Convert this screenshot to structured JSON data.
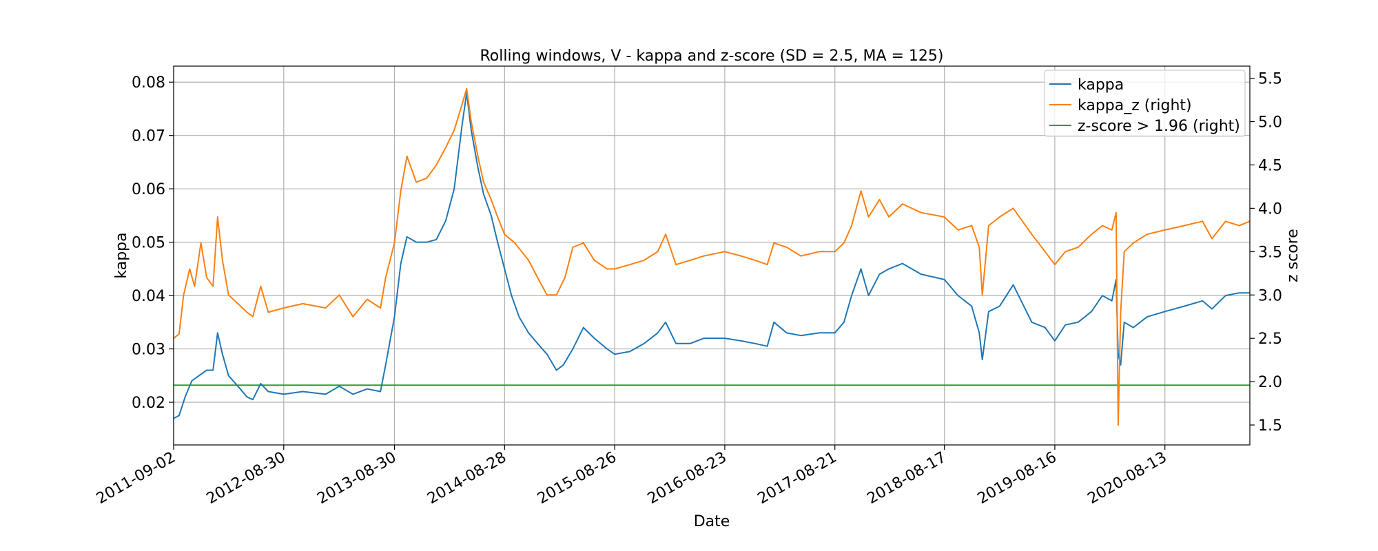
{
  "chart_data": {
    "type": "line",
    "title": "Rolling windows, V - kappa and z-score (SD = 2.5, MA = 125)",
    "xlabel": "Date",
    "ylabel_left": "kappa",
    "ylabel_right": "z score",
    "grid": true,
    "legend_position": "top-right",
    "x_range": [
      "2011-09-02",
      "2021-05-20"
    ],
    "x_ticks": [
      "2011-09-02",
      "2012-08-30",
      "2013-08-30",
      "2014-08-28",
      "2015-08-26",
      "2016-08-23",
      "2017-08-21",
      "2018-08-17",
      "2019-08-16",
      "2020-08-13"
    ],
    "y_left": {
      "range": [
        0.012,
        0.083
      ],
      "ticks": [
        "0.02",
        "0.03",
        "0.04",
        "0.05",
        "0.06",
        "0.07",
        "0.08"
      ]
    },
    "y_right": {
      "range": [
        1.27,
        5.64
      ],
      "ticks": [
        "1.5",
        "2.0",
        "2.5",
        "3.0",
        "3.5",
        "4.0",
        "4.5",
        "5.0",
        "5.5"
      ]
    },
    "series": [
      {
        "name": "kappa",
        "axis": "left",
        "color": "#1f77b4",
        "points": [
          [
            "2011-09-02",
            0.017
          ],
          [
            "2011-09-20",
            0.0175
          ],
          [
            "2011-10-10",
            0.021
          ],
          [
            "2011-11-01",
            0.024
          ],
          [
            "2011-11-25",
            0.025
          ],
          [
            "2011-12-20",
            0.026
          ],
          [
            "2012-01-10",
            0.026
          ],
          [
            "2012-01-25",
            0.033
          ],
          [
            "2012-02-10",
            0.029
          ],
          [
            "2012-03-01",
            0.025
          ],
          [
            "2012-04-01",
            0.023
          ],
          [
            "2012-05-01",
            0.021
          ],
          [
            "2012-05-20",
            0.0205
          ],
          [
            "2012-06-15",
            0.0235
          ],
          [
            "2012-07-10",
            0.022
          ],
          [
            "2012-08-30",
            0.0215
          ],
          [
            "2012-11-01",
            0.022
          ],
          [
            "2013-01-15",
            0.0215
          ],
          [
            "2013-03-01",
            0.023
          ],
          [
            "2013-04-15",
            0.0215
          ],
          [
            "2013-06-01",
            0.0225
          ],
          [
            "2013-07-15",
            0.022
          ],
          [
            "2013-08-01",
            0.027
          ],
          [
            "2013-08-30",
            0.036
          ],
          [
            "2013-09-20",
            0.046
          ],
          [
            "2013-10-10",
            0.051
          ],
          [
            "2013-11-10",
            0.05
          ],
          [
            "2013-12-15",
            0.05
          ],
          [
            "2014-01-15",
            0.0505
          ],
          [
            "2014-02-15",
            0.054
          ],
          [
            "2014-03-15",
            0.06
          ],
          [
            "2014-04-10",
            0.072
          ],
          [
            "2014-04-25",
            0.078
          ],
          [
            "2014-05-10",
            0.071
          ],
          [
            "2014-06-01",
            0.064
          ],
          [
            "2014-06-20",
            0.059
          ],
          [
            "2014-07-15",
            0.055
          ],
          [
            "2014-08-05",
            0.05
          ],
          [
            "2014-08-28",
            0.045
          ],
          [
            "2014-09-20",
            0.04
          ],
          [
            "2014-10-15",
            0.036
          ],
          [
            "2014-11-15",
            0.033
          ],
          [
            "2014-12-15",
            0.031
          ],
          [
            "2015-01-15",
            0.029
          ],
          [
            "2015-02-15",
            0.026
          ],
          [
            "2015-03-10",
            0.027
          ],
          [
            "2015-04-10",
            0.03
          ],
          [
            "2015-05-15",
            0.034
          ],
          [
            "2015-06-20",
            0.032
          ],
          [
            "2015-08-01",
            0.03
          ],
          [
            "2015-08-26",
            0.029
          ],
          [
            "2015-10-15",
            0.0295
          ],
          [
            "2015-12-01",
            0.031
          ],
          [
            "2016-01-15",
            0.033
          ],
          [
            "2016-02-10",
            0.035
          ],
          [
            "2016-03-15",
            0.031
          ],
          [
            "2016-05-01",
            0.031
          ],
          [
            "2016-06-15",
            0.032
          ],
          [
            "2016-08-23",
            0.032
          ],
          [
            "2016-10-15",
            0.0315
          ],
          [
            "2016-12-01",
            0.031
          ],
          [
            "2017-01-10",
            0.0305
          ],
          [
            "2017-02-01",
            0.035
          ],
          [
            "2017-03-15",
            0.033
          ],
          [
            "2017-05-01",
            0.0325
          ],
          [
            "2017-07-01",
            0.033
          ],
          [
            "2017-08-21",
            0.033
          ],
          [
            "2017-09-20",
            0.035
          ],
          [
            "2017-10-15",
            0.04
          ],
          [
            "2017-11-15",
            0.045
          ],
          [
            "2017-12-10",
            0.04
          ],
          [
            "2018-01-15",
            0.044
          ],
          [
            "2018-02-15",
            0.045
          ],
          [
            "2018-04-01",
            0.046
          ],
          [
            "2018-06-01",
            0.044
          ],
          [
            "2018-08-17",
            0.043
          ],
          [
            "2018-10-01",
            0.04
          ],
          [
            "2018-11-15",
            0.038
          ],
          [
            "2018-12-10",
            0.033
          ],
          [
            "2018-12-20",
            0.028
          ],
          [
            "2019-01-10",
            0.037
          ],
          [
            "2019-02-15",
            0.038
          ],
          [
            "2019-04-01",
            0.042
          ],
          [
            "2019-06-01",
            0.035
          ],
          [
            "2019-07-15",
            0.034
          ],
          [
            "2019-08-16",
            0.0315
          ],
          [
            "2019-09-20",
            0.0345
          ],
          [
            "2019-11-01",
            0.035
          ],
          [
            "2019-12-15",
            0.037
          ],
          [
            "2020-01-20",
            0.04
          ],
          [
            "2020-02-20",
            0.039
          ],
          [
            "2020-03-05",
            0.043
          ],
          [
            "2020-03-12",
            0.029
          ],
          [
            "2020-03-20",
            0.027
          ],
          [
            "2020-04-01",
            0.035
          ],
          [
            "2020-05-01",
            0.034
          ],
          [
            "2020-06-15",
            0.036
          ],
          [
            "2020-08-13",
            0.037
          ],
          [
            "2020-10-15",
            0.038
          ],
          [
            "2020-12-15",
            0.039
          ],
          [
            "2021-01-15",
            0.0375
          ],
          [
            "2021-03-01",
            0.04
          ],
          [
            "2021-04-15",
            0.0405
          ],
          [
            "2021-05-20",
            0.0405
          ]
        ]
      },
      {
        "name": "kappa_z (right)",
        "axis": "right",
        "color": "#ff7f0e",
        "points": [
          [
            "2011-09-02",
            2.5
          ],
          [
            "2011-09-20",
            2.55
          ],
          [
            "2011-10-05",
            3.0
          ],
          [
            "2011-10-25",
            3.3
          ],
          [
            "2011-11-10",
            3.1
          ],
          [
            "2011-12-01",
            3.6
          ],
          [
            "2011-12-20",
            3.2
          ],
          [
            "2012-01-10",
            3.1
          ],
          [
            "2012-01-25",
            3.9
          ],
          [
            "2012-02-10",
            3.4
          ],
          [
            "2012-03-01",
            3.0
          ],
          [
            "2012-04-01",
            2.9
          ],
          [
            "2012-05-01",
            2.8
          ],
          [
            "2012-05-20",
            2.75
          ],
          [
            "2012-06-15",
            3.1
          ],
          [
            "2012-07-10",
            2.8
          ],
          [
            "2012-08-30",
            2.85
          ],
          [
            "2012-11-01",
            2.9
          ],
          [
            "2013-01-15",
            2.85
          ],
          [
            "2013-03-01",
            3.0
          ],
          [
            "2013-04-15",
            2.75
          ],
          [
            "2013-06-01",
            2.95
          ],
          [
            "2013-07-15",
            2.85
          ],
          [
            "2013-08-01",
            3.2
          ],
          [
            "2013-08-30",
            3.6
          ],
          [
            "2013-09-20",
            4.2
          ],
          [
            "2013-10-10",
            4.6
          ],
          [
            "2013-11-10",
            4.3
          ],
          [
            "2013-12-15",
            4.35
          ],
          [
            "2014-01-15",
            4.5
          ],
          [
            "2014-02-15",
            4.7
          ],
          [
            "2014-03-15",
            4.9
          ],
          [
            "2014-04-10",
            5.2
          ],
          [
            "2014-04-25",
            5.38
          ],
          [
            "2014-05-10",
            5.0
          ],
          [
            "2014-06-01",
            4.6
          ],
          [
            "2014-06-20",
            4.3
          ],
          [
            "2014-07-15",
            4.1
          ],
          [
            "2014-08-05",
            3.9
          ],
          [
            "2014-08-28",
            3.7
          ],
          [
            "2014-10-01",
            3.6
          ],
          [
            "2014-11-15",
            3.4
          ],
          [
            "2014-12-15",
            3.2
          ],
          [
            "2015-01-15",
            3.0
          ],
          [
            "2015-02-15",
            3.0
          ],
          [
            "2015-03-15",
            3.2
          ],
          [
            "2015-04-10",
            3.55
          ],
          [
            "2015-05-15",
            3.6
          ],
          [
            "2015-06-20",
            3.4
          ],
          [
            "2015-08-01",
            3.3
          ],
          [
            "2015-08-26",
            3.3
          ],
          [
            "2015-10-15",
            3.35
          ],
          [
            "2015-12-01",
            3.4
          ],
          [
            "2016-01-15",
            3.5
          ],
          [
            "2016-02-10",
            3.7
          ],
          [
            "2016-03-15",
            3.35
          ],
          [
            "2016-05-01",
            3.4
          ],
          [
            "2016-06-15",
            3.45
          ],
          [
            "2016-08-23",
            3.5
          ],
          [
            "2016-10-15",
            3.45
          ],
          [
            "2016-12-01",
            3.4
          ],
          [
            "2017-01-10",
            3.35
          ],
          [
            "2017-02-01",
            3.6
          ],
          [
            "2017-03-15",
            3.55
          ],
          [
            "2017-05-01",
            3.45
          ],
          [
            "2017-07-01",
            3.5
          ],
          [
            "2017-08-21",
            3.5
          ],
          [
            "2017-09-20",
            3.6
          ],
          [
            "2017-10-15",
            3.8
          ],
          [
            "2017-11-15",
            4.2
          ],
          [
            "2017-12-10",
            3.9
          ],
          [
            "2018-01-15",
            4.1
          ],
          [
            "2018-02-15",
            3.9
          ],
          [
            "2018-04-01",
            4.05
          ],
          [
            "2018-06-01",
            3.95
          ],
          [
            "2018-08-17",
            3.9
          ],
          [
            "2018-10-01",
            3.75
          ],
          [
            "2018-11-15",
            3.8
          ],
          [
            "2018-12-10",
            3.55
          ],
          [
            "2018-12-20",
            3.0
          ],
          [
            "2019-01-10",
            3.8
          ],
          [
            "2019-02-15",
            3.9
          ],
          [
            "2019-04-01",
            4.0
          ],
          [
            "2019-06-01",
            3.7
          ],
          [
            "2019-07-15",
            3.5
          ],
          [
            "2019-08-16",
            3.35
          ],
          [
            "2019-09-20",
            3.5
          ],
          [
            "2019-11-01",
            3.55
          ],
          [
            "2019-12-15",
            3.7
          ],
          [
            "2020-01-20",
            3.8
          ],
          [
            "2020-02-20",
            3.75
          ],
          [
            "2020-03-05",
            3.95
          ],
          [
            "2020-03-12",
            1.5
          ],
          [
            "2020-03-20",
            2.8
          ],
          [
            "2020-04-01",
            3.5
          ],
          [
            "2020-05-01",
            3.6
          ],
          [
            "2020-06-15",
            3.7
          ],
          [
            "2020-08-13",
            3.75
          ],
          [
            "2020-10-15",
            3.8
          ],
          [
            "2020-12-15",
            3.85
          ],
          [
            "2021-01-15",
            3.65
          ],
          [
            "2021-03-01",
            3.85
          ],
          [
            "2021-04-15",
            3.8
          ],
          [
            "2021-05-20",
            3.85
          ]
        ]
      },
      {
        "name": "z-score > 1.96 (right)",
        "axis": "right",
        "color": "#2ca02c",
        "points": [
          [
            "2011-09-02",
            1.96
          ],
          [
            "2021-05-20",
            1.96
          ]
        ]
      }
    ]
  }
}
